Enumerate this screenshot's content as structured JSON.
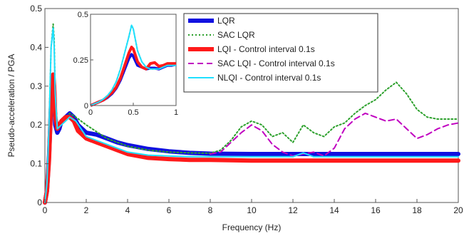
{
  "chart_data": [
    {
      "id": "main",
      "type": "line",
      "xlabel": "Frequency (Hz)",
      "ylabel": "Pseudo-acceleration / PGA",
      "xlim": [
        0,
        20
      ],
      "ylim": [
        0,
        0.5
      ],
      "xticks": [
        "0",
        "2",
        "4",
        "6",
        "8",
        "10",
        "12",
        "14",
        "16",
        "18",
        "20"
      ],
      "yticks": [
        "0",
        "0.1",
        "0.2",
        "0.3",
        "0.4",
        "0.5"
      ],
      "grid": false,
      "legend_position": "top-right",
      "series": [
        {
          "name": "LQR",
          "color": "#1010e0",
          "style": "solid",
          "x": [
            0,
            0.1,
            0.2,
            0.3,
            0.4,
            0.45,
            0.5,
            0.6,
            0.7,
            0.8,
            1.0,
            1.2,
            1.4,
            1.6,
            2.0,
            2.5,
            3,
            3.5,
            4,
            5,
            6,
            7,
            8,
            10,
            12,
            14,
            16,
            18,
            20
          ],
          "y": [
            0.0,
            0.03,
            0.12,
            0.25,
            0.31,
            0.29,
            0.2,
            0.18,
            0.19,
            0.21,
            0.22,
            0.23,
            0.22,
            0.2,
            0.18,
            0.175,
            0.165,
            0.155,
            0.148,
            0.138,
            0.132,
            0.128,
            0.126,
            0.125,
            0.125,
            0.125,
            0.125,
            0.125,
            0.125
          ]
        },
        {
          "name": "SAC LQR",
          "color": "#2ca02c",
          "style": "dotted",
          "x": [
            0,
            0.1,
            0.2,
            0.3,
            0.4,
            0.45,
            0.5,
            0.6,
            0.8,
            1.0,
            1.2,
            1.5,
            2,
            3,
            4,
            5,
            6,
            7,
            8,
            8.5,
            9,
            9.5,
            10,
            10.5,
            11,
            11.5,
            12,
            12.5,
            13,
            13.5,
            14,
            14.5,
            15,
            15.5,
            16,
            16.5,
            17,
            17.5,
            18,
            18.5,
            19,
            19.5,
            20
          ],
          "y": [
            0.0,
            0.05,
            0.2,
            0.4,
            0.46,
            0.42,
            0.28,
            0.2,
            0.21,
            0.22,
            0.23,
            0.22,
            0.2,
            0.165,
            0.145,
            0.135,
            0.13,
            0.128,
            0.127,
            0.135,
            0.16,
            0.195,
            0.21,
            0.2,
            0.17,
            0.18,
            0.155,
            0.2,
            0.18,
            0.17,
            0.195,
            0.205,
            0.23,
            0.25,
            0.265,
            0.29,
            0.31,
            0.28,
            0.24,
            0.22,
            0.215,
            0.215,
            0.215
          ]
        },
        {
          "name": "LQI - Control interval 0.1s",
          "color": "#ff1a1a",
          "style": "solid",
          "x": [
            0,
            0.1,
            0.2,
            0.3,
            0.4,
            0.45,
            0.5,
            0.6,
            0.7,
            0.8,
            1.0,
            1.2,
            1.4,
            1.6,
            2.0,
            2.5,
            3,
            3.5,
            4,
            5,
            6,
            7,
            8,
            10,
            12,
            14,
            16,
            18,
            20
          ],
          "y": [
            0.0,
            0.03,
            0.11,
            0.26,
            0.33,
            0.3,
            0.22,
            0.19,
            0.2,
            0.21,
            0.22,
            0.22,
            0.21,
            0.185,
            0.165,
            0.155,
            0.145,
            0.135,
            0.125,
            0.115,
            0.112,
            0.11,
            0.11,
            0.108,
            0.108,
            0.108,
            0.108,
            0.108,
            0.108
          ]
        },
        {
          "name": "SAC LQI - Control interval 0.1s",
          "color": "#c000c0",
          "style": "dashed",
          "x": [
            8,
            8.5,
            9,
            9.5,
            10,
            10.5,
            11,
            11.5,
            12,
            12.5,
            13,
            13.5,
            14,
            14.5,
            15,
            15.5,
            16,
            16.5,
            17,
            17.5,
            18,
            18.5,
            19,
            19.5,
            20
          ],
          "y": [
            0.125,
            0.13,
            0.155,
            0.18,
            0.2,
            0.185,
            0.15,
            0.13,
            0.12,
            0.125,
            0.13,
            0.12,
            0.14,
            0.19,
            0.215,
            0.23,
            0.22,
            0.21,
            0.215,
            0.19,
            0.165,
            0.175,
            0.19,
            0.2,
            0.205
          ]
        },
        {
          "name": "NLQI - Control interval 0.1s",
          "color": "#20e0ff",
          "style": "solid",
          "x": [
            0,
            0.1,
            0.2,
            0.3,
            0.4,
            0.45,
            0.5,
            0.6,
            0.8,
            1.0,
            1.2,
            1.5,
            2,
            2.5,
            3,
            4,
            5,
            6,
            7,
            8,
            10,
            12,
            12.5,
            13,
            14,
            16,
            18,
            20
          ],
          "y": [
            0.0,
            0.05,
            0.2,
            0.4,
            0.45,
            0.4,
            0.28,
            0.19,
            0.2,
            0.21,
            0.22,
            0.21,
            0.17,
            0.16,
            0.15,
            0.13,
            0.122,
            0.12,
            0.118,
            0.118,
            0.118,
            0.118,
            0.128,
            0.118,
            0.118,
            0.118,
            0.118,
            0.118
          ]
        }
      ]
    },
    {
      "id": "inset",
      "type": "line",
      "xlim": [
        0,
        1
      ],
      "ylim": [
        0,
        0.5
      ],
      "xticks": [
        "0",
        "0.5",
        "1"
      ],
      "yticks": [
        "0",
        "0.25",
        "0.5"
      ],
      "series": [
        {
          "name": "LQR",
          "color": "#1010e0",
          "style": "solid",
          "x": [
            0,
            0.05,
            0.1,
            0.15,
            0.2,
            0.25,
            0.3,
            0.35,
            0.4,
            0.45,
            0.48,
            0.5,
            0.55,
            0.6,
            0.65,
            0.7,
            0.75,
            0.8,
            0.85,
            0.9,
            0.95,
            1.0
          ],
          "y": [
            0.0,
            0.01,
            0.02,
            0.03,
            0.045,
            0.065,
            0.095,
            0.14,
            0.2,
            0.26,
            0.28,
            0.27,
            0.22,
            0.21,
            0.2,
            0.205,
            0.205,
            0.2,
            0.21,
            0.22,
            0.22,
            0.225
          ]
        },
        {
          "name": "SAC LQR",
          "color": "#2ca02c",
          "style": "dotted",
          "x": [
            0,
            0.05,
            0.1,
            0.15,
            0.2,
            0.25,
            0.3,
            0.35,
            0.4,
            0.45,
            0.48,
            0.5,
            0.55,
            0.6,
            0.65,
            0.7,
            0.75,
            0.8,
            0.85,
            0.9,
            0.95,
            1.0
          ],
          "y": [
            0.0,
            0.01,
            0.02,
            0.035,
            0.055,
            0.085,
            0.13,
            0.2,
            0.29,
            0.38,
            0.44,
            0.42,
            0.3,
            0.24,
            0.21,
            0.2,
            0.2,
            0.2,
            0.21,
            0.22,
            0.22,
            0.22
          ]
        },
        {
          "name": "LQI - Control interval 0.1s",
          "color": "#ff1a1a",
          "style": "solid",
          "x": [
            0,
            0.05,
            0.1,
            0.15,
            0.2,
            0.25,
            0.3,
            0.35,
            0.4,
            0.45,
            0.48,
            0.5,
            0.55,
            0.6,
            0.65,
            0.7,
            0.75,
            0.8,
            0.85,
            0.9,
            0.95,
            1.0
          ],
          "y": [
            0.0,
            0.01,
            0.02,
            0.03,
            0.05,
            0.07,
            0.1,
            0.15,
            0.22,
            0.29,
            0.32,
            0.31,
            0.24,
            0.21,
            0.2,
            0.23,
            0.235,
            0.215,
            0.22,
            0.23,
            0.23,
            0.23
          ]
        },
        {
          "name": "NLQI - Control interval 0.1s",
          "color": "#20e0ff",
          "style": "solid",
          "x": [
            0,
            0.05,
            0.1,
            0.15,
            0.2,
            0.25,
            0.3,
            0.35,
            0.4,
            0.45,
            0.48,
            0.5,
            0.55,
            0.6,
            0.65,
            0.7,
            0.75,
            0.8,
            0.85,
            0.9,
            0.95,
            1.0
          ],
          "y": [
            0.0,
            0.01,
            0.02,
            0.035,
            0.055,
            0.085,
            0.13,
            0.2,
            0.29,
            0.38,
            0.44,
            0.42,
            0.3,
            0.24,
            0.21,
            0.2,
            0.2,
            0.2,
            0.21,
            0.22,
            0.22,
            0.22
          ]
        }
      ]
    }
  ]
}
